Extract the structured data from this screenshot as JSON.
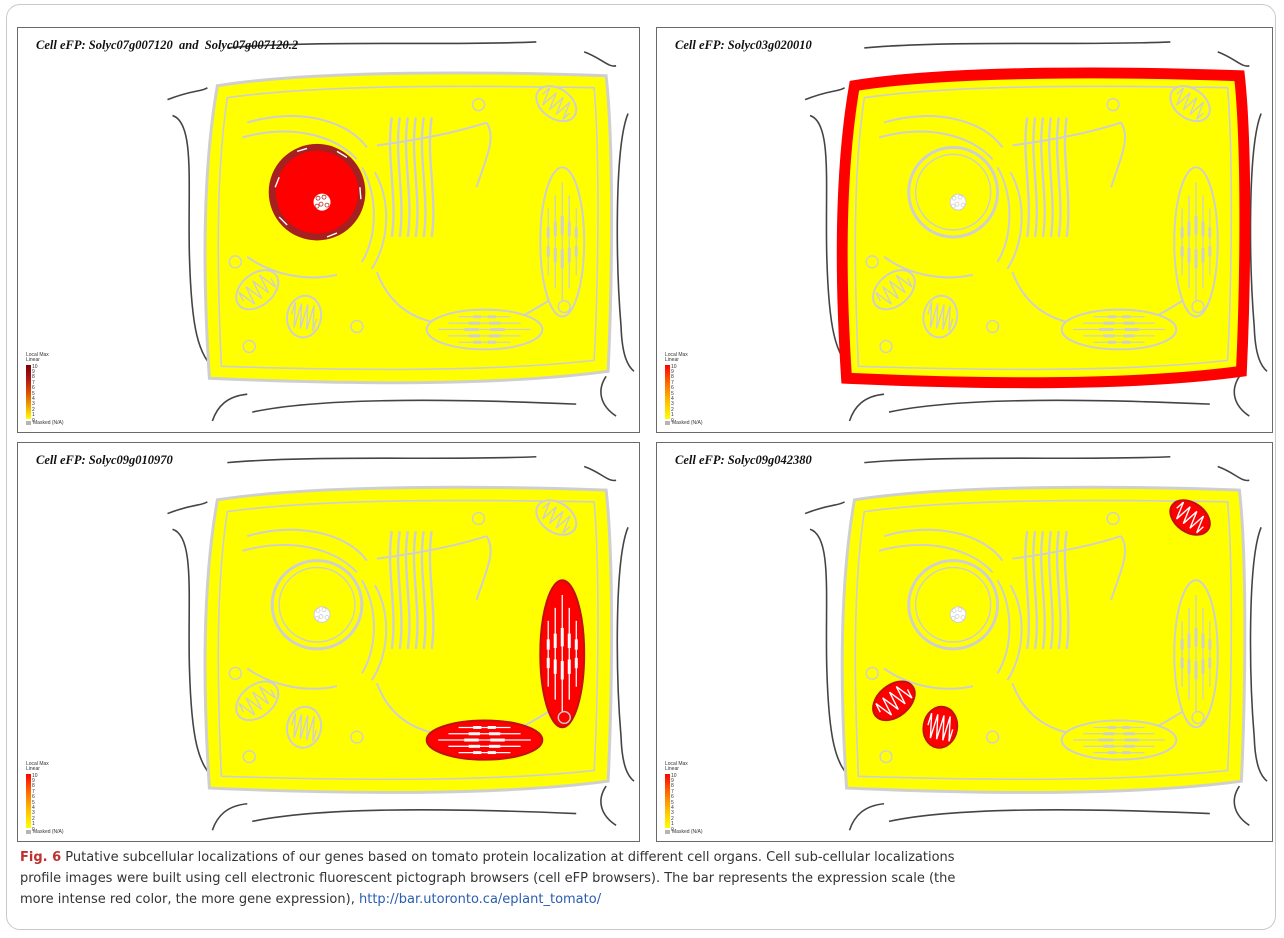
{
  "panels": [
    {
      "title": "Cell eFP: Solyc07g007120  and  Solyc07g007120.2",
      "highlight": "nucleus"
    },
    {
      "title": "Cell eFP: Solyc03g020010",
      "highlight": "membrane"
    },
    {
      "title": "Cell eFP: Solyc09g010970",
      "highlight": "chloroplast"
    },
    {
      "title": "Cell eFP: Solyc09g042380",
      "highlight": "mitochondria"
    }
  ],
  "legend": {
    "title1": "Local Max",
    "title2": "Linear",
    "ticks": [
      "10",
      "9",
      "8",
      "7",
      "6",
      "5",
      "4",
      "3",
      "2",
      "1",
      "0"
    ],
    "masked": "Masked (N/A)"
  },
  "caption": {
    "label": "Fig. 6",
    "line1": "Putative subcellular localizations of our genes based on tomato protein localization at different cell organs. Cell sub-cellular localizations",
    "line2": "profile images were built using cell electronic fluorescent pictograph browsers (cell eFP browsers). The bar represents the expression scale (the",
    "line3": "more intense red color, the more gene expression),",
    "link": "http://bar.utoronto.ca/eplant_tomato/"
  },
  "colors": {
    "cytoplasm": "#ffff00",
    "high": "#ff0000",
    "nucleus_ring": "#a52020",
    "outline": "#cfcfcf"
  }
}
